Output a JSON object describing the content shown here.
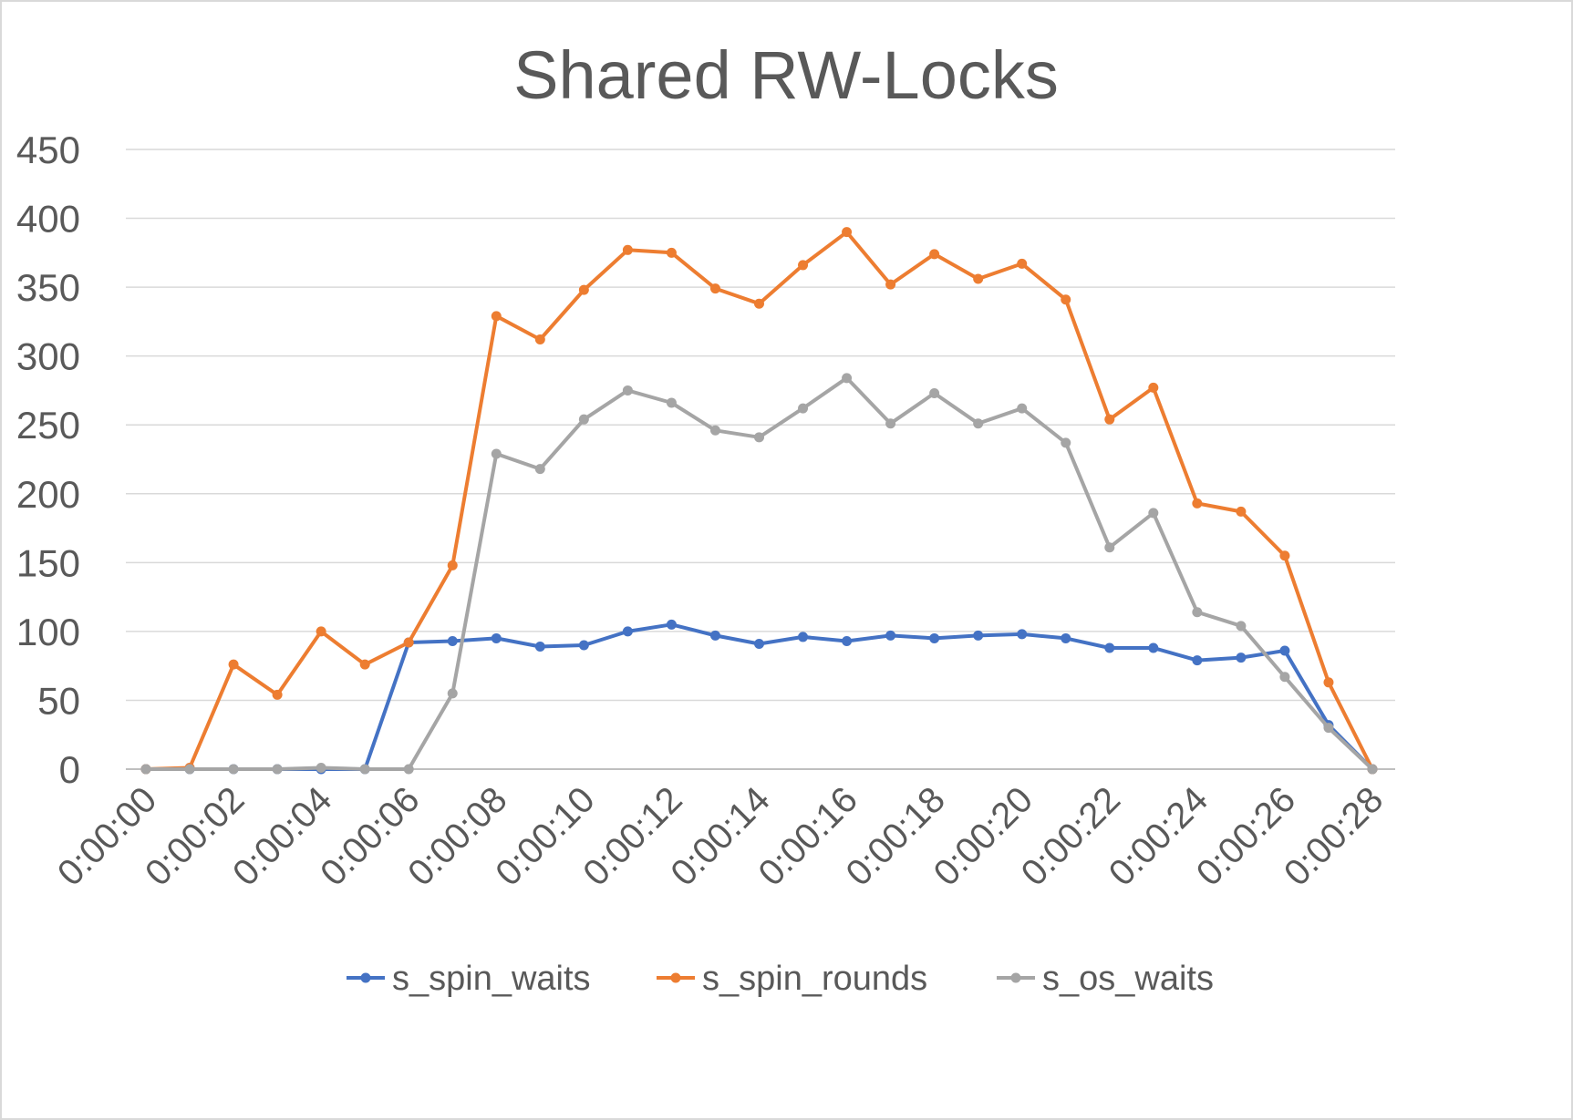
{
  "chart_data": {
    "type": "line",
    "title": "Shared RW-Locks",
    "xlabel": "",
    "ylabel": "",
    "ylim": [
      0,
      450
    ],
    "yticks": [
      "0",
      "50",
      "100",
      "150",
      "200",
      "250",
      "300",
      "350",
      "400",
      "450"
    ],
    "grid": true,
    "legend_position": "bottom",
    "x": [
      "0:00:00",
      "0:00:01",
      "0:00:02",
      "0:00:03",
      "0:00:04",
      "0:00:05",
      "0:00:06",
      "0:00:07",
      "0:00:08",
      "0:00:09",
      "0:00:10",
      "0:00:11",
      "0:00:12",
      "0:00:13",
      "0:00:14",
      "0:00:15",
      "0:00:16",
      "0:00:17",
      "0:00:18",
      "0:00:19",
      "0:00:20",
      "0:00:21",
      "0:00:22",
      "0:00:23",
      "0:00:24",
      "0:00:25",
      "0:00:26",
      "0:00:27",
      "0:00:28"
    ],
    "xtick_labels": [
      "0:00:00",
      "0:00:02",
      "0:00:04",
      "0:00:06",
      "0:00:08",
      "0:00:10",
      "0:00:12",
      "0:00:14",
      "0:00:16",
      "0:00:18",
      "0:00:20",
      "0:00:22",
      "0:00:24",
      "0:00:26",
      "0:00:28"
    ],
    "series": [
      {
        "name": "s_spin_waits",
        "color": "#4472c4",
        "values": [
          0,
          0,
          0,
          0,
          0,
          0,
          92,
          93,
          95,
          89,
          90,
          100,
          105,
          97,
          91,
          96,
          93,
          97,
          95,
          97,
          98,
          95,
          88,
          88,
          79,
          81,
          86,
          32,
          0
        ]
      },
      {
        "name": "s_spin_rounds",
        "color": "#ed7d31",
        "values": [
          0,
          1,
          76,
          54,
          100,
          76,
          92,
          148,
          329,
          312,
          348,
          377,
          375,
          349,
          338,
          366,
          390,
          352,
          374,
          356,
          367,
          341,
          254,
          277,
          193,
          187,
          155,
          63,
          0
        ]
      },
      {
        "name": "s_os_waits",
        "color": "#a5a5a5",
        "values": [
          0,
          0,
          0,
          0,
          1,
          0,
          0,
          55,
          229,
          218,
          254,
          275,
          266,
          246,
          241,
          262,
          284,
          251,
          273,
          251,
          262,
          237,
          161,
          186,
          114,
          104,
          67,
          30,
          0
        ]
      }
    ]
  }
}
